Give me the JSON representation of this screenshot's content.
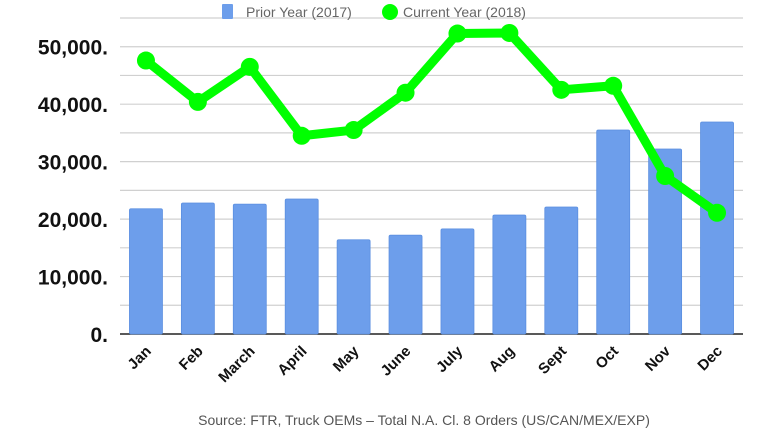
{
  "chart_data": {
    "type": "bar+line",
    "title": "",
    "xlabel": "",
    "ylabel": "",
    "ylim": [
      0,
      55000
    ],
    "grid": true,
    "legend_position": "top-center",
    "categories": [
      "Jan",
      "Feb",
      "March",
      "April",
      "May",
      "June",
      "July",
      "Aug",
      "Sept",
      "Oct",
      "Nov",
      "Dec"
    ],
    "y_ticks": [
      0,
      10000,
      20000,
      30000,
      40000,
      50000
    ],
    "y_tick_labels": [
      "0.",
      "10,000.",
      "20,000.",
      "30,000.",
      "40,000.",
      "50,000."
    ],
    "series": [
      {
        "name": "Prior Year (2017)",
        "type": "bar",
        "color": "#6d9eeb",
        "values": [
          21800,
          22800,
          22600,
          23500,
          16400,
          17200,
          18300,
          20700,
          22100,
          35500,
          32200,
          36900
        ]
      },
      {
        "name": "Current Year (2018)",
        "type": "line",
        "color": "#00ff00",
        "values": [
          47600,
          40400,
          46500,
          34500,
          35500,
          42000,
          52300,
          52400,
          42500,
          43200,
          27500,
          21100
        ]
      }
    ],
    "source": "Source: FTR, Truck OEMs – Total N.A. Cl. 8 Orders (US/CAN/MEX/EXP)"
  }
}
